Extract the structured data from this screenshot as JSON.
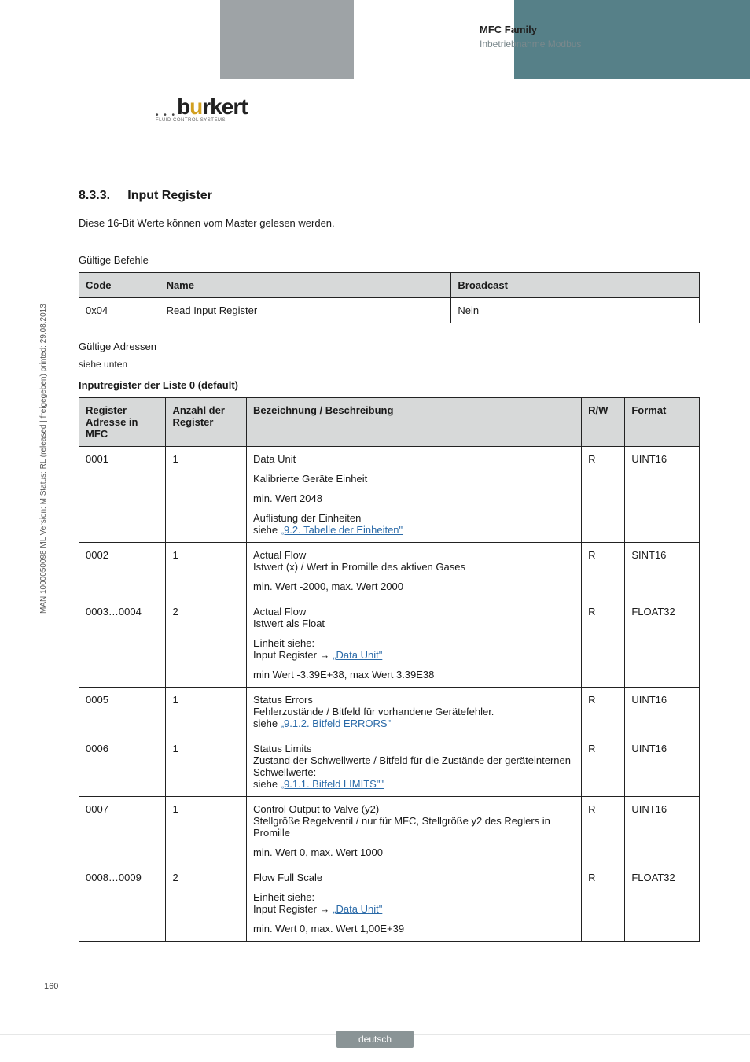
{
  "header": {
    "title": "MFC Family",
    "subtitle": "Inbetriebnahme Modbus"
  },
  "logo": {
    "name": "burkert",
    "tagline": "FLUID CONTROL SYSTEMS"
  },
  "side_text": "MAN 1000050098 ML Version: M Status: RL (released | freigegeben) printed: 29.08.2013",
  "page_number": "160",
  "section": {
    "number": "8.3.3.",
    "title": "Input Register",
    "intro": "Diese 16-Bit Werte können vom Master gelesen werden."
  },
  "commands": {
    "caption": "Gültige Befehle",
    "columns": [
      "Code",
      "Name",
      "Broadcast"
    ],
    "rows": [
      [
        "0x04",
        "Read Input Register",
        "Nein"
      ]
    ]
  },
  "addresses_heading": "Gültige Adressen",
  "addresses_sub": "siehe unten",
  "list_heading": "Inputregister der Liste 0 (default)",
  "registers": {
    "columns": [
      "Register Adresse in MFC",
      "Anzahl der Register",
      "Bezeichnung / Beschreibung",
      "R/W",
      "Format"
    ],
    "rows": [
      {
        "addr": "0001",
        "count": "1",
        "desc": [
          {
            "text": "Data Unit"
          },
          {
            "text": "Kalibrierte Geräte Einheit"
          },
          {
            "text": "min. Wert 2048"
          },
          {
            "text": "Auflistung der Einheiten",
            "nl": true,
            "then_plain": "siehe ",
            "link": "„9.2. Tabelle der Einheiten\""
          }
        ],
        "rw": "R",
        "format": "UINT16"
      },
      {
        "addr": "0002",
        "count": "1",
        "desc": [
          {
            "text": "Actual Flow",
            "nl": true,
            "then_plain": "Istwert (x) / Wert in Promille des aktiven Gases"
          },
          {
            "text": "min. Wert -2000, max. Wert 2000"
          }
        ],
        "rw": "R",
        "format": "SINT16"
      },
      {
        "addr": "0003…0004",
        "count": "2",
        "desc": [
          {
            "text": "Actual Flow",
            "nl": true,
            "then_plain": "Istwert als Float"
          },
          {
            "text": "Einheit siehe:",
            "nl": true,
            "then_plain": "Input Register → ",
            "link": "„Data Unit\""
          },
          {
            "text": "min Wert -3.39E+38, max Wert 3.39E38"
          }
        ],
        "rw": "R",
        "format": "FLOAT32"
      },
      {
        "addr": "0005",
        "count": "1",
        "desc": [
          {
            "text": "Status Errors",
            "nl": true,
            "then_plain": "Fehlerzustände / Bitfeld für vorhandene Gerätefehler.",
            "nl2": true,
            "then2_plain": "siehe ",
            "link": "„9.1.2. Bitfeld ERRORS\""
          }
        ],
        "rw": "R",
        "format": "UINT16"
      },
      {
        "addr": "0006",
        "count": "1",
        "desc": [
          {
            "text": "Status Limits",
            "nl": true,
            "then_plain": "Zustand der  Schwellwerte / Bitfeld für die Zustände der geräteinternen Schwellwerte:",
            "nl2": true,
            "then2_plain": "siehe ",
            "link": "„9.1.1. Bitfeld LIMITS\"\""
          }
        ],
        "rw": "R",
        "format": "UINT16"
      },
      {
        "addr": "0007",
        "count": "1",
        "desc": [
          {
            "text": "Control Output to Valve (y2)",
            "nl": true,
            "then_plain": "Stellgröße Regelventil / nur für MFC, Stellgröße y2 des Reglers in Promille"
          },
          {
            "text": "min. Wert 0, max. Wert 1000"
          }
        ],
        "rw": "R",
        "format": "UINT16"
      },
      {
        "addr": "0008…0009",
        "count": "2",
        "desc": [
          {
            "text": "Flow Full Scale"
          },
          {
            "text": "Einheit siehe:",
            "nl": true,
            "then_plain": "Input Register → ",
            "link": "„Data Unit\""
          },
          {
            "text": "min. Wert 0, max. Wert 1,00E+39"
          }
        ],
        "rw": "R",
        "format": "FLOAT32"
      }
    ]
  },
  "footer_label": "deutsch",
  "colors": {
    "gray_block": "#9ea3a6",
    "teal_block": "#568088",
    "th_bg": "#d7d9d9",
    "link": "#2a6aa8",
    "footer_pill": "#8a9496"
  }
}
